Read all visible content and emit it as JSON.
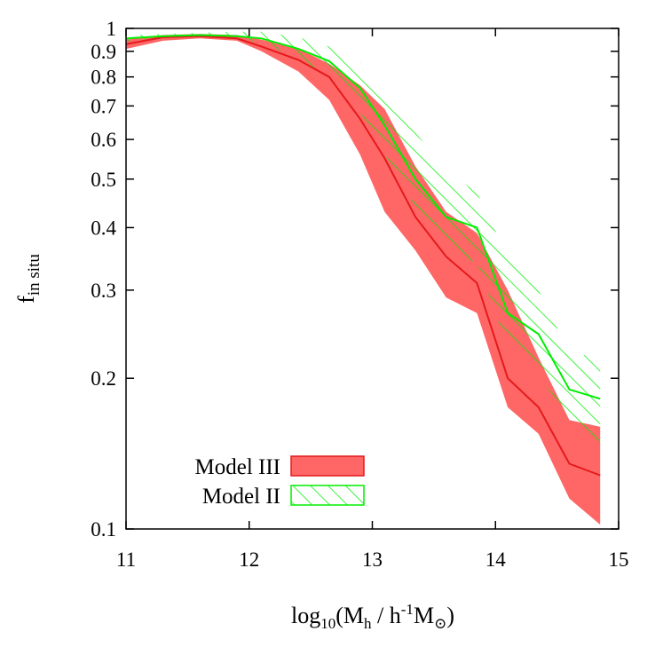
{
  "chart_data": {
    "type": "area",
    "title": "",
    "xlabel": {
      "prefix": "log",
      "prefix_sub": "10",
      "open": "(M",
      "m_sub": "h",
      "divider": " / h",
      "power": "-1",
      "unit": "M",
      "unit_sub": "⊙",
      "close": ")"
    },
    "ylabel": {
      "main": "f",
      "sub": "in situ"
    },
    "xlim": [
      11,
      15
    ],
    "ylim": [
      0.1,
      1
    ],
    "yscale": "log",
    "grid": false,
    "legend_position": "bottom-left",
    "x_ticks": [
      {
        "value": 11,
        "label": "11"
      },
      {
        "value": 12,
        "label": "12"
      },
      {
        "value": 13,
        "label": "13"
      },
      {
        "value": 14,
        "label": "14"
      },
      {
        "value": 15,
        "label": "15"
      }
    ],
    "y_ticks": [
      {
        "value": 0.1,
        "label": "0.1"
      },
      {
        "value": 0.2,
        "label": "0.2"
      },
      {
        "value": 0.3,
        "label": "0.3"
      },
      {
        "value": 0.4,
        "label": "0.4"
      },
      {
        "value": 0.5,
        "label": "0.5"
      },
      {
        "value": 0.6,
        "label": "0.6"
      },
      {
        "value": 0.7,
        "label": "0.7"
      },
      {
        "value": 0.8,
        "label": "0.8"
      },
      {
        "value": 0.9,
        "label": "0.9"
      },
      {
        "value": 1,
        "label": "1"
      }
    ],
    "series": [
      {
        "name": "Model III",
        "color": "#e41a1c",
        "fill_color": "#ff6666",
        "style": "solid-band",
        "x": [
          11.0,
          11.3,
          11.6,
          11.9,
          12.1,
          12.4,
          12.65,
          12.9,
          13.1,
          13.35,
          13.6,
          13.85,
          14.1,
          14.35,
          14.6,
          14.85
        ],
        "y": [
          0.93,
          0.96,
          0.965,
          0.955,
          0.92,
          0.865,
          0.8,
          0.66,
          0.55,
          0.42,
          0.35,
          0.31,
          0.2,
          0.175,
          0.135,
          0.128
        ],
        "upper": [
          0.95,
          0.97,
          0.975,
          0.97,
          0.95,
          0.91,
          0.85,
          0.77,
          0.69,
          0.53,
          0.43,
          0.39,
          0.3,
          0.22,
          0.165,
          0.16
        ],
        "lower": [
          0.91,
          0.945,
          0.955,
          0.945,
          0.9,
          0.82,
          0.72,
          0.56,
          0.43,
          0.36,
          0.29,
          0.27,
          0.175,
          0.155,
          0.115,
          0.102
        ]
      },
      {
        "name": "Model II",
        "color": "#00ee00",
        "fill_color": "#00ee00",
        "style": "hatched-band",
        "x": [
          11.0,
          11.3,
          11.6,
          11.9,
          12.1,
          12.4,
          12.65,
          12.9,
          13.1,
          13.35,
          13.6,
          13.85,
          14.1,
          14.35,
          14.6,
          14.85
        ],
        "y": [
          0.955,
          0.965,
          0.97,
          0.965,
          0.955,
          0.91,
          0.86,
          0.76,
          0.64,
          0.5,
          0.42,
          0.4,
          0.27,
          0.245,
          0.19,
          0.182
        ],
        "upper": [
          0.97,
          0.975,
          0.98,
          0.985,
          0.985,
          0.96,
          0.92,
          0.86,
          0.76,
          0.62,
          0.52,
          0.47,
          0.35,
          0.3,
          0.225,
          0.22
        ],
        "lower": [
          0.94,
          0.955,
          0.96,
          0.955,
          0.935,
          0.87,
          0.8,
          0.68,
          0.56,
          0.44,
          0.36,
          0.34,
          0.23,
          0.2,
          0.17,
          0.14
        ]
      }
    ]
  }
}
